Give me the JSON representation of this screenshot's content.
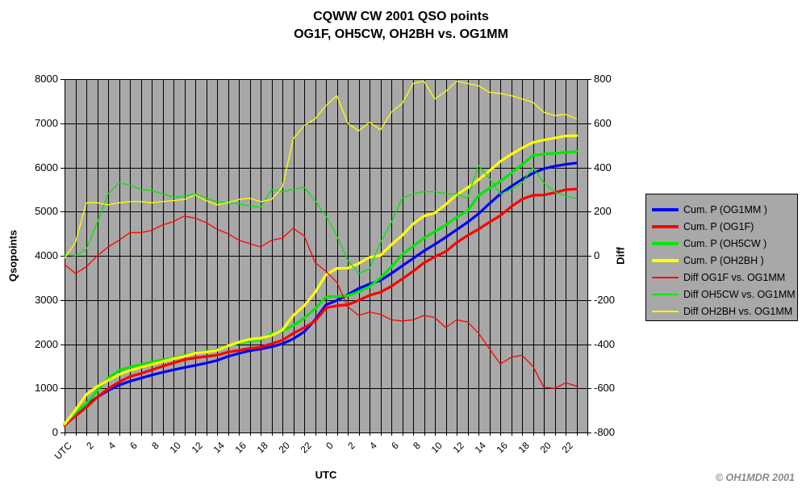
{
  "chart_data": {
    "type": "line",
    "title": "CQWW CW 2001 QSO points",
    "subtitle": "OG1F, OH5CW, OH2BH vs. OG1MM",
    "plot_bg": "#A8A8A8",
    "grid_color": "#000000",
    "n_points": 48,
    "x_axis": {
      "title": "UTC",
      "tick_labels": [
        "UTC",
        "2",
        "4",
        "6",
        "8",
        "10",
        "12",
        "14",
        "16",
        "18",
        "20",
        "22",
        "0",
        "2",
        "4",
        "6",
        "8",
        "10",
        "12",
        "14",
        "16",
        "18",
        "20",
        "22"
      ],
      "note": "48 hourly points, gridline every hour, label every 2 hours"
    },
    "y_left": {
      "title": "Qsopoints",
      "min": 0,
      "max": 8000,
      "tick_labels": [
        "8000",
        "7000",
        "6000",
        "5000",
        "4000",
        "3000",
        "2000",
        "1000",
        "0"
      ]
    },
    "y_right": {
      "title": "Diff",
      "min": -800,
      "max": 800,
      "tick_labels": [
        "800",
        "600",
        "400",
        "200",
        "0",
        "-200",
        "-400",
        "-600",
        "-800"
      ]
    },
    "legend_position": "right",
    "series": [
      {
        "name": "Cum. P (OG1MM )",
        "color": "#0000FF",
        "axis": "left",
        "thick": true,
        "values": [
          200,
          450,
          620,
          800,
          950,
          1070,
          1160,
          1230,
          1300,
          1360,
          1420,
          1470,
          1520,
          1570,
          1630,
          1720,
          1790,
          1850,
          1890,
          1940,
          2010,
          2120,
          2280,
          2550,
          2890,
          2990,
          3120,
          3260,
          3360,
          3440,
          3600,
          3770,
          3940,
          4110,
          4260,
          4420,
          4590,
          4760,
          4950,
          5180,
          5400,
          5570,
          5730,
          5870,
          5970,
          6030,
          6070,
          6100
        ]
      },
      {
        "name": "Cum. P (OG1F)",
        "color": "#FF0000",
        "axis": "left",
        "thick": true,
        "values": [
          160,
          370,
          570,
          800,
          990,
          1140,
          1265,
          1335,
          1415,
          1500,
          1575,
          1650,
          1690,
          1720,
          1750,
          1820,
          1860,
          1905,
          1930,
          2010,
          2090,
          2245,
          2370,
          2520,
          2820,
          2870,
          2890,
          2990,
          3105,
          3175,
          3310,
          3475,
          3650,
          3840,
          3980,
          4095,
          4300,
          4460,
          4600,
          4760,
          4910,
          5110,
          5280,
          5370,
          5375,
          5430,
          5495,
          5510
        ]
      },
      {
        "name": "Cum. P (OH5CW )",
        "color": "#00E800",
        "axis": "left",
        "thick": true,
        "values": [
          205,
          450,
          650,
          950,
          1230,
          1400,
          1480,
          1530,
          1595,
          1640,
          1685,
          1740,
          1800,
          1830,
          1875,
          1960,
          2025,
          2075,
          2110,
          2240,
          2300,
          2420,
          2590,
          2800,
          3070,
          3080,
          3100,
          3180,
          3300,
          3500,
          3750,
          4030,
          4220,
          4400,
          4550,
          4700,
          4870,
          5020,
          5360,
          5530,
          5680,
          5870,
          6060,
          6270,
          6300,
          6320,
          6340,
          6360
        ]
      },
      {
        "name": "Cum. P (OH2BH )",
        "color": "#FFFF00",
        "axis": "left",
        "thick": true,
        "values": [
          190,
          510,
          860,
          1040,
          1180,
          1310,
          1405,
          1475,
          1540,
          1605,
          1670,
          1725,
          1795,
          1820,
          1860,
          1960,
          2045,
          2110,
          2135,
          2195,
          2320,
          2650,
          2870,
          3170,
          3570,
          3715,
          3720,
          3825,
          3965,
          4010,
          4250,
          4460,
          4720,
          4900,
          4970,
          5165,
          5380,
          5540,
          5720,
          5920,
          6135,
          6295,
          6440,
          6565,
          6620,
          6665,
          6710,
          6720
        ]
      },
      {
        "name": "Diff OG1F vs. OG1MM",
        "color": "#FF0000",
        "axis": "right",
        "thick": false,
        "values": [
          -40,
          -80,
          -50,
          0,
          40,
          70,
          105,
          105,
          115,
          140,
          155,
          180,
          170,
          150,
          120,
          100,
          70,
          55,
          40,
          70,
          80,
          125,
          90,
          -30,
          -70,
          -120,
          -230,
          -270,
          -255,
          -265,
          -290,
          -295,
          -290,
          -270,
          -280,
          -325,
          -290,
          -300,
          -350,
          -420,
          -490,
          -460,
          -450,
          -500,
          -595,
          -600,
          -575,
          -590
        ]
      },
      {
        "name": "Diff OH5CW vs. OG1MM",
        "color": "#00E800",
        "axis": "right",
        "thick": false,
        "values": [
          5,
          0,
          30,
          150,
          280,
          330,
          320,
          300,
          295,
          280,
          265,
          270,
          280,
          260,
          245,
          240,
          235,
          225,
          220,
          300,
          290,
          300,
          310,
          250,
          180,
          90,
          -20,
          -80,
          -60,
          60,
          150,
          260,
          280,
          290,
          290,
          280,
          280,
          260,
          410,
          350,
          280,
          300,
          330,
          400,
          330,
          290,
          270,
          260
        ]
      },
      {
        "name": "Diff OH2BH vs. OG1MM",
        "color": "#FFFF00",
        "axis": "right",
        "thick": false,
        "values": [
          -10,
          60,
          240,
          240,
          230,
          240,
          245,
          245,
          240,
          245,
          250,
          255,
          275,
          250,
          230,
          240,
          255,
          260,
          245,
          255,
          310,
          530,
          590,
          620,
          680,
          725,
          600,
          565,
          605,
          570,
          650,
          690,
          780,
          790,
          710,
          745,
          790,
          780,
          770,
          740,
          735,
          725,
          710,
          695,
          650,
          635,
          640,
          620
        ]
      }
    ],
    "copyright": "© OH1MDR 2001"
  }
}
